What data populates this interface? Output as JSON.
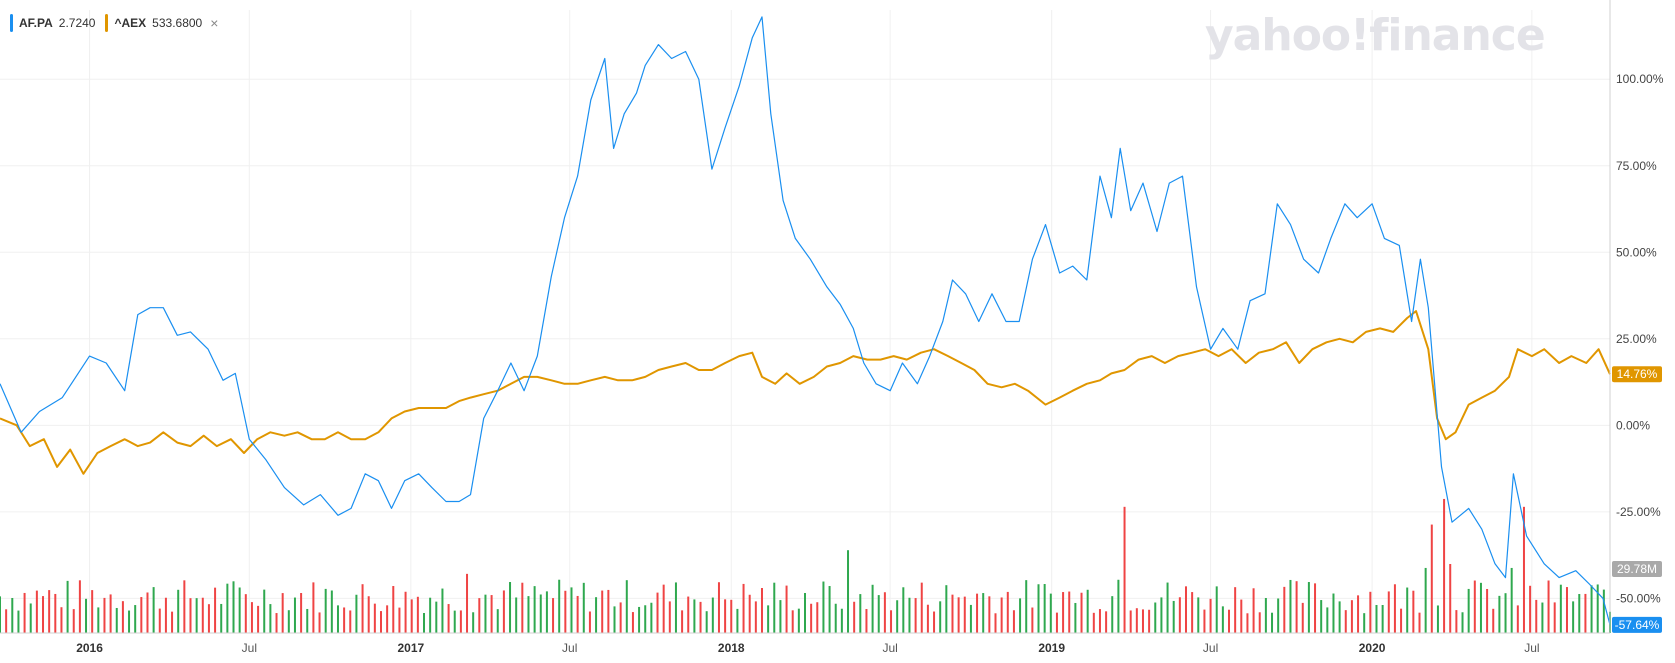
{
  "brand": {
    "text": "yahoo!finance",
    "color": "#e3e3e8"
  },
  "legend": {
    "items": [
      {
        "symbol": "AF.PA",
        "value": "2.7240",
        "color": "#1a8ff0"
      },
      {
        "symbol": "^AEX",
        "value": "533.6800",
        "color": "#e09600"
      }
    ],
    "remove_icon": "close-x-icon",
    "remove_glyph": "×"
  },
  "badges": {
    "aex_last": {
      "text": "14.76%",
      "color": "#e09600"
    },
    "volume_last": {
      "text": "29.78M",
      "color": "#a9a9a9"
    },
    "afpa_last": {
      "text": "-57.64%",
      "color": "#1a8ff0"
    }
  },
  "chart_data": {
    "type": "line",
    "x_start": "2015-09-21",
    "x_end": "2020-09-28",
    "x_ticks": [
      {
        "label": "2016",
        "date": "2016-01-01",
        "bold": true
      },
      {
        "label": "Jul",
        "date": "2016-07-01",
        "bold": false
      },
      {
        "label": "2017",
        "date": "2017-01-01",
        "bold": true
      },
      {
        "label": "Jul",
        "date": "2017-07-01",
        "bold": false
      },
      {
        "label": "2018",
        "date": "2018-01-01",
        "bold": true
      },
      {
        "label": "Jul",
        "date": "2018-07-01",
        "bold": false
      },
      {
        "label": "2019",
        "date": "2019-01-01",
        "bold": true
      },
      {
        "label": "Jul",
        "date": "2019-07-01",
        "bold": false
      },
      {
        "label": "2020",
        "date": "2020-01-01",
        "bold": true
      },
      {
        "label": "Jul",
        "date": "2020-07-01",
        "bold": false
      }
    ],
    "y_ticks": [
      "100.00%",
      "75.00%",
      "50.00%",
      "25.00%",
      "0.00%",
      "-25.00%",
      "-50.00%"
    ],
    "y_tick_values": [
      100,
      75,
      50,
      25,
      0,
      -25,
      -50
    ],
    "ylim": [
      -60,
      120
    ],
    "grid": true,
    "series": [
      {
        "name": "AF.PA",
        "color": "#1a8ff0",
        "points": [
          [
            "2015-09-21",
            12
          ],
          [
            "2015-10-15",
            -2
          ],
          [
            "2015-11-05",
            4
          ],
          [
            "2015-12-01",
            8
          ],
          [
            "2016-01-01",
            20
          ],
          [
            "2016-01-20",
            18
          ],
          [
            "2016-02-10",
            10
          ],
          [
            "2016-02-25",
            32
          ],
          [
            "2016-03-10",
            34
          ],
          [
            "2016-03-25",
            34
          ],
          [
            "2016-04-10",
            26
          ],
          [
            "2016-04-25",
            27
          ],
          [
            "2016-05-15",
            22
          ],
          [
            "2016-06-01",
            13
          ],
          [
            "2016-06-15",
            15
          ],
          [
            "2016-07-01",
            -4
          ],
          [
            "2016-07-20",
            -10
          ],
          [
            "2016-08-10",
            -18
          ],
          [
            "2016-09-01",
            -23
          ],
          [
            "2016-09-20",
            -20
          ],
          [
            "2016-10-10",
            -26
          ],
          [
            "2016-10-25",
            -24
          ],
          [
            "2016-11-10",
            -14
          ],
          [
            "2016-11-25",
            -16
          ],
          [
            "2016-12-10",
            -24
          ],
          [
            "2016-12-25",
            -16
          ],
          [
            "2017-01-10",
            -14
          ],
          [
            "2017-01-25",
            -18
          ],
          [
            "2017-02-10",
            -22
          ],
          [
            "2017-02-25",
            -22
          ],
          [
            "2017-03-10",
            -20
          ],
          [
            "2017-03-25",
            2
          ],
          [
            "2017-04-10",
            10
          ],
          [
            "2017-04-25",
            18
          ],
          [
            "2017-05-10",
            10
          ],
          [
            "2017-05-25",
            20
          ],
          [
            "2017-06-10",
            43
          ],
          [
            "2017-06-25",
            60
          ],
          [
            "2017-07-10",
            72
          ],
          [
            "2017-07-25",
            94
          ],
          [
            "2017-08-10",
            106
          ],
          [
            "2017-08-20",
            80
          ],
          [
            "2017-09-01",
            90
          ],
          [
            "2017-09-15",
            96
          ],
          [
            "2017-09-25",
            104
          ],
          [
            "2017-10-10",
            110
          ],
          [
            "2017-10-25",
            106
          ],
          [
            "2017-11-10",
            108
          ],
          [
            "2017-11-25",
            100
          ],
          [
            "2017-12-10",
            74
          ],
          [
            "2017-12-25",
            86
          ],
          [
            "2018-01-10",
            98
          ],
          [
            "2018-01-25",
            112
          ],
          [
            "2018-02-05",
            118
          ],
          [
            "2018-02-15",
            90
          ],
          [
            "2018-03-01",
            65
          ],
          [
            "2018-03-15",
            54
          ],
          [
            "2018-04-01",
            48
          ],
          [
            "2018-04-20",
            40
          ],
          [
            "2018-05-05",
            35
          ],
          [
            "2018-05-20",
            28
          ],
          [
            "2018-06-01",
            18
          ],
          [
            "2018-06-15",
            12
          ],
          [
            "2018-07-01",
            10
          ],
          [
            "2018-07-15",
            18
          ],
          [
            "2018-08-01",
            12
          ],
          [
            "2018-08-15",
            20
          ],
          [
            "2018-08-30",
            30
          ],
          [
            "2018-09-10",
            42
          ],
          [
            "2018-09-25",
            38
          ],
          [
            "2018-10-10",
            30
          ],
          [
            "2018-10-25",
            38
          ],
          [
            "2018-11-10",
            30
          ],
          [
            "2018-11-25",
            30
          ],
          [
            "2018-12-10",
            48
          ],
          [
            "2018-12-25",
            58
          ],
          [
            "2019-01-10",
            44
          ],
          [
            "2019-01-25",
            46
          ],
          [
            "2019-02-10",
            42
          ],
          [
            "2019-02-25",
            72
          ],
          [
            "2019-03-10",
            60
          ],
          [
            "2019-03-20",
            80
          ],
          [
            "2019-04-01",
            62
          ],
          [
            "2019-04-15",
            70
          ],
          [
            "2019-05-01",
            56
          ],
          [
            "2019-05-15",
            70
          ],
          [
            "2019-05-30",
            72
          ],
          [
            "2019-06-15",
            40
          ],
          [
            "2019-07-01",
            22
          ],
          [
            "2019-07-15",
            28
          ],
          [
            "2019-08-01",
            22
          ],
          [
            "2019-08-15",
            36
          ],
          [
            "2019-09-01",
            38
          ],
          [
            "2019-09-15",
            64
          ],
          [
            "2019-09-30",
            58
          ],
          [
            "2019-10-15",
            48
          ],
          [
            "2019-11-01",
            44
          ],
          [
            "2019-11-15",
            54
          ],
          [
            "2019-12-01",
            64
          ],
          [
            "2019-12-15",
            60
          ],
          [
            "2020-01-01",
            64
          ],
          [
            "2020-01-15",
            54
          ],
          [
            "2020-02-01",
            52
          ],
          [
            "2020-02-15",
            30
          ],
          [
            "2020-02-25",
            48
          ],
          [
            "2020-03-05",
            34
          ],
          [
            "2020-03-20",
            -12
          ],
          [
            "2020-04-01",
            -28
          ],
          [
            "2020-04-20",
            -24
          ],
          [
            "2020-05-05",
            -30
          ],
          [
            "2020-05-20",
            -40
          ],
          [
            "2020-06-01",
            -44
          ],
          [
            "2020-06-10",
            -14
          ],
          [
            "2020-06-25",
            -32
          ],
          [
            "2020-07-15",
            -40
          ],
          [
            "2020-08-01",
            -44
          ],
          [
            "2020-08-20",
            -42
          ],
          [
            "2020-09-05",
            -46
          ],
          [
            "2020-09-20",
            -50
          ],
          [
            "2020-09-28",
            -57.64
          ]
        ]
      },
      {
        "name": "^AEX",
        "color": "#e09600",
        "points": [
          [
            "2015-09-21",
            2
          ],
          [
            "2015-10-10",
            0
          ],
          [
            "2015-10-25",
            -6
          ],
          [
            "2015-11-10",
            -4
          ],
          [
            "2015-11-25",
            -12
          ],
          [
            "2015-12-10",
            -7
          ],
          [
            "2015-12-25",
            -14
          ],
          [
            "2016-01-10",
            -8
          ],
          [
            "2016-01-25",
            -6
          ],
          [
            "2016-02-10",
            -4
          ],
          [
            "2016-02-25",
            -6
          ],
          [
            "2016-03-10",
            -5
          ],
          [
            "2016-03-25",
            -2
          ],
          [
            "2016-04-10",
            -5
          ],
          [
            "2016-04-25",
            -6
          ],
          [
            "2016-05-10",
            -3
          ],
          [
            "2016-05-25",
            -6
          ],
          [
            "2016-06-10",
            -4
          ],
          [
            "2016-06-25",
            -8
          ],
          [
            "2016-07-10",
            -4
          ],
          [
            "2016-07-25",
            -2
          ],
          [
            "2016-08-10",
            -3
          ],
          [
            "2016-08-25",
            -2
          ],
          [
            "2016-09-10",
            -4
          ],
          [
            "2016-09-25",
            -4
          ],
          [
            "2016-10-10",
            -2
          ],
          [
            "2016-10-25",
            -4
          ],
          [
            "2016-11-10",
            -4
          ],
          [
            "2016-11-25",
            -2
          ],
          [
            "2016-12-10",
            2
          ],
          [
            "2016-12-25",
            4
          ],
          [
            "2017-01-10",
            5
          ],
          [
            "2017-01-25",
            5
          ],
          [
            "2017-02-10",
            5
          ],
          [
            "2017-02-25",
            7
          ],
          [
            "2017-03-10",
            8
          ],
          [
            "2017-03-25",
            9
          ],
          [
            "2017-04-10",
            10
          ],
          [
            "2017-04-25",
            12
          ],
          [
            "2017-05-10",
            14
          ],
          [
            "2017-05-25",
            14
          ],
          [
            "2017-06-10",
            13
          ],
          [
            "2017-06-25",
            12
          ],
          [
            "2017-07-10",
            12
          ],
          [
            "2017-07-25",
            13
          ],
          [
            "2017-08-10",
            14
          ],
          [
            "2017-08-25",
            13
          ],
          [
            "2017-09-10",
            13
          ],
          [
            "2017-09-25",
            14
          ],
          [
            "2017-10-10",
            16
          ],
          [
            "2017-10-25",
            17
          ],
          [
            "2017-11-10",
            18
          ],
          [
            "2017-11-25",
            16
          ],
          [
            "2017-12-10",
            16
          ],
          [
            "2017-12-25",
            18
          ],
          [
            "2018-01-10",
            20
          ],
          [
            "2018-01-25",
            21
          ],
          [
            "2018-02-05",
            14
          ],
          [
            "2018-02-20",
            12
          ],
          [
            "2018-03-05",
            15
          ],
          [
            "2018-03-20",
            12
          ],
          [
            "2018-04-05",
            14
          ],
          [
            "2018-04-20",
            17
          ],
          [
            "2018-05-05",
            18
          ],
          [
            "2018-05-20",
            20
          ],
          [
            "2018-06-05",
            19
          ],
          [
            "2018-06-20",
            19
          ],
          [
            "2018-07-05",
            20
          ],
          [
            "2018-07-20",
            19
          ],
          [
            "2018-08-05",
            21
          ],
          [
            "2018-08-20",
            22
          ],
          [
            "2018-09-05",
            20
          ],
          [
            "2018-09-20",
            18
          ],
          [
            "2018-10-05",
            16
          ],
          [
            "2018-10-20",
            12
          ],
          [
            "2018-11-05",
            11
          ],
          [
            "2018-11-20",
            12
          ],
          [
            "2018-12-05",
            10
          ],
          [
            "2018-12-25",
            6
          ],
          [
            "2019-01-10",
            8
          ],
          [
            "2019-01-25",
            10
          ],
          [
            "2019-02-10",
            12
          ],
          [
            "2019-02-25",
            13
          ],
          [
            "2019-03-10",
            15
          ],
          [
            "2019-03-25",
            16
          ],
          [
            "2019-04-10",
            19
          ],
          [
            "2019-04-25",
            20
          ],
          [
            "2019-05-10",
            18
          ],
          [
            "2019-05-25",
            20
          ],
          [
            "2019-06-10",
            21
          ],
          [
            "2019-06-25",
            22
          ],
          [
            "2019-07-10",
            20
          ],
          [
            "2019-07-25",
            22
          ],
          [
            "2019-08-10",
            18
          ],
          [
            "2019-08-25",
            21
          ],
          [
            "2019-09-10",
            22
          ],
          [
            "2019-09-25",
            24
          ],
          [
            "2019-10-10",
            18
          ],
          [
            "2019-10-25",
            22
          ],
          [
            "2019-11-10",
            24
          ],
          [
            "2019-11-25",
            25
          ],
          [
            "2019-12-10",
            24
          ],
          [
            "2019-12-25",
            27
          ],
          [
            "2020-01-10",
            28
          ],
          [
            "2020-01-25",
            27
          ],
          [
            "2020-02-10",
            31
          ],
          [
            "2020-02-20",
            33
          ],
          [
            "2020-03-05",
            22
          ],
          [
            "2020-03-15",
            2
          ],
          [
            "2020-03-25",
            -4
          ],
          [
            "2020-04-05",
            -2
          ],
          [
            "2020-04-20",
            6
          ],
          [
            "2020-05-05",
            8
          ],
          [
            "2020-05-20",
            10
          ],
          [
            "2020-06-05",
            14
          ],
          [
            "2020-06-15",
            22
          ],
          [
            "2020-07-01",
            20
          ],
          [
            "2020-07-15",
            22
          ],
          [
            "2020-08-01",
            18
          ],
          [
            "2020-08-15",
            20
          ],
          [
            "2020-09-01",
            18
          ],
          [
            "2020-09-15",
            22
          ],
          [
            "2020-09-28",
            14.76
          ]
        ]
      }
    ],
    "volume": {
      "up_color": "#2fa84f",
      "down_color": "#ef4444",
      "max": 140,
      "spikes": [
        [
          "2017-03-05",
          60
        ],
        [
          "2018-05-15",
          84
        ],
        [
          "2019-03-15",
          54
        ],
        [
          "2019-03-25",
          128
        ],
        [
          "2020-03-01",
          66
        ],
        [
          "2020-03-10",
          110
        ],
        [
          "2020-03-20",
          136
        ],
        [
          "2020-04-01",
          70
        ],
        [
          "2020-06-10",
          66
        ],
        [
          "2020-06-20",
          128
        ]
      ]
    }
  }
}
